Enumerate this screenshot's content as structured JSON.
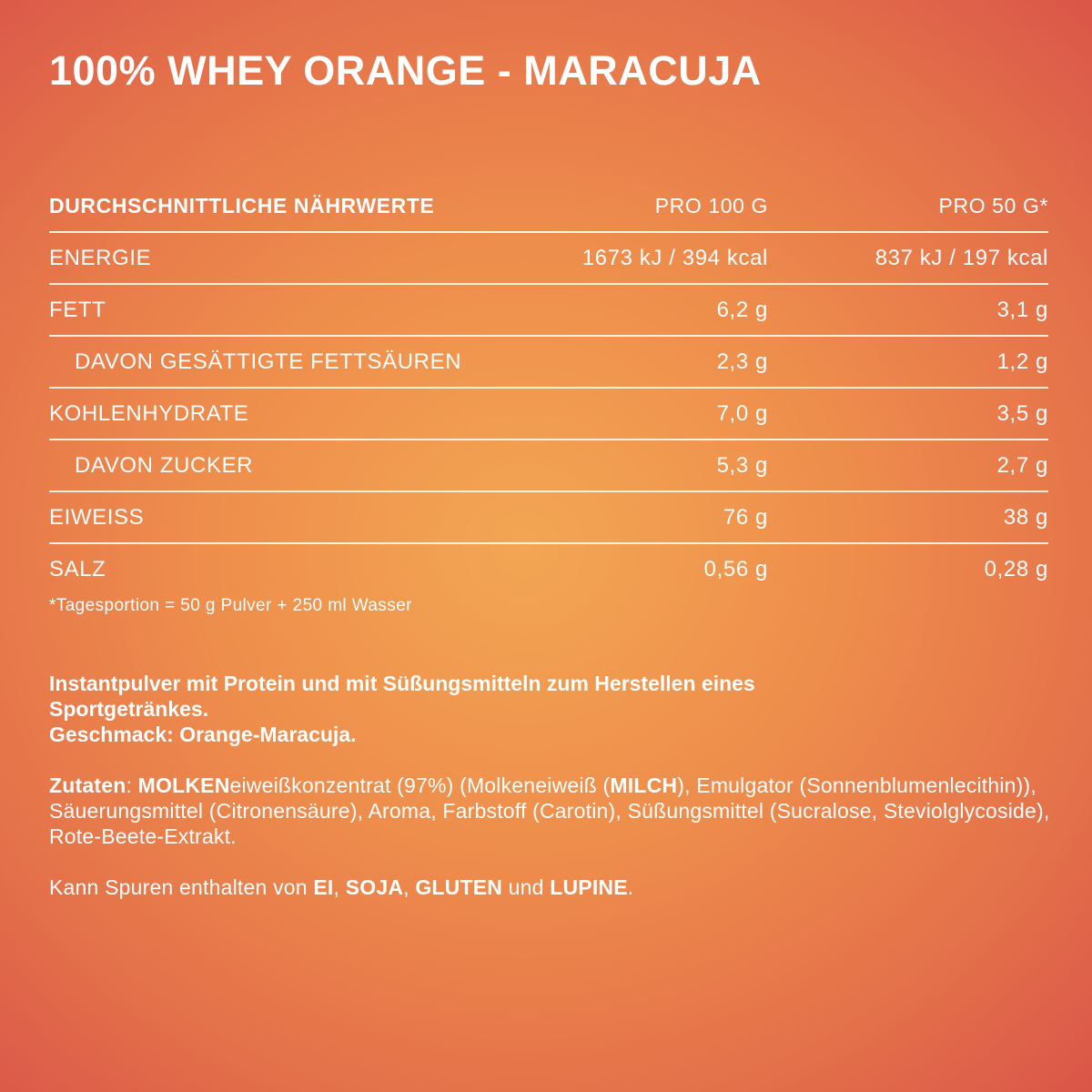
{
  "title": "100% WHEY ORANGE - MARACUJA",
  "table": {
    "header": {
      "label": "DURCHSCHNITTLICHE NÄHRWERTE",
      "col1": "PRO 100 G",
      "col2": "PRO 50 G*"
    },
    "rows": [
      {
        "label": "ENERGIE",
        "per100": "1673 kJ / 394 kcal",
        "per50": "837 kJ / 197 kcal"
      },
      {
        "label": "FETT",
        "per100": "6,2 g",
        "per50": "3,1 g"
      },
      {
        "label": "DAVON GESÄTTIGTE FETTSÄUREN",
        "per100": "2,3 g",
        "per50": "1,2 g"
      },
      {
        "label": "KOHLENHYDRATE",
        "per100": "7,0 g",
        "per50": "3,5 g"
      },
      {
        "label": "DAVON ZUCKER",
        "per100": "5,3 g",
        "per50": "2,7 g"
      },
      {
        "label": "EIWEISS",
        "per100": "76 g",
        "per50": "38 g"
      },
      {
        "label": "SALZ",
        "per100": "0,56 g",
        "per50": "0,28 g"
      }
    ]
  },
  "footnote": "*Tagesportion = 50 g Pulver + 250 ml Wasser",
  "description": {
    "line1": "Instantpulver mit Protein und mit Süßungsmitteln zum Herstellen eines",
    "line2": "Sportgetränkes.",
    "line3": "Geschmack: Orange-Maracuja."
  },
  "ingredients": {
    "label": "Zutaten",
    "colon": ": ",
    "allergen1": "MOLKEN",
    "text1": "eiweißkonzentrat (97%) (Molkeneiweiß (",
    "allergen2": "MILCH",
    "text2": "), Emulgator (Sonnenblumenlecithin)), Säuerungsmittel (Citronensäure), Aroma, Farbstoff (Carotin), Süßungsmittel (Sucralose, Steviolglycoside), Rote-Beete-Extrakt."
  },
  "traces": {
    "text1": "Kann Spuren enthalten von ",
    "allergen1": "EI",
    "sep1": ", ",
    "allergen2": "SOJA",
    "sep2": ", ",
    "allergen3": "GLUTEN",
    "sep3": " und ",
    "allergen4": "LUPINE",
    "end": "."
  }
}
